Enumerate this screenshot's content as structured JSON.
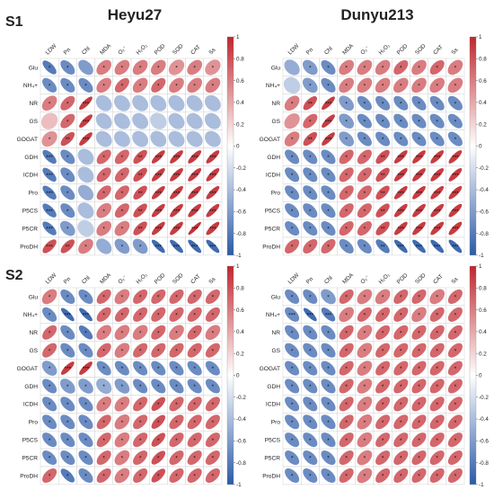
{
  "figure": {
    "section_labels": [
      "S1",
      "S2"
    ],
    "column_titles": [
      "Heyu27",
      "Dunyu213"
    ]
  },
  "chart_data": {
    "type": "heatmap",
    "encoding": "correlation ellipses (color & eccentricity = r); stars = significance",
    "columns": [
      "LDW",
      "Pn",
      "Chl",
      "MDA",
      "O₂⁻",
      "H₂O₂",
      "POD",
      "SOD",
      "CAT",
      "Ss"
    ],
    "rows": [
      "Glu",
      "NH₄+",
      "NR",
      "GS",
      "GOGAT",
      "GDH",
      "ICDH",
      "Pro",
      "P5CS",
      "P5CR",
      "ProDH"
    ],
    "colorbar": {
      "range": [
        -1,
        1
      ],
      "ticks": [
        "1",
        "0.8",
        "0.6",
        "0.4",
        "0.2",
        "0",
        "-0.2",
        "-0.4",
        "-0.6",
        "-0.8",
        "-1"
      ],
      "low_color": "#2b5aa8",
      "mid_color": "#ffffff",
      "high_color": "#c0262d"
    },
    "panels": [
      {
        "section": "S1",
        "title": "Heyu27",
        "values": [
          [
            -0.8,
            -0.7,
            -0.6,
            0.6,
            0.6,
            0.6,
            0.6,
            0.5,
            0.6,
            0.5
          ],
          [
            -0.7,
            -0.7,
            -0.7,
            0.6,
            0.7,
            0.6,
            0.7,
            0.6,
            0.6,
            0.6
          ],
          [
            0.6,
            0.7,
            0.9,
            -0.4,
            -0.4,
            -0.4,
            -0.4,
            -0.4,
            -0.4,
            -0.4
          ],
          [
            0.3,
            0.7,
            0.9,
            -0.4,
            -0.4,
            -0.4,
            -0.3,
            -0.4,
            -0.4,
            -0.4
          ],
          [
            0.5,
            0.8,
            0.9,
            -0.4,
            -0.4,
            -0.4,
            -0.4,
            -0.4,
            -0.4,
            -0.4
          ],
          [
            -0.8,
            -0.7,
            -0.4,
            0.7,
            0.7,
            0.8,
            0.9,
            0.9,
            0.9,
            0.9
          ],
          [
            -0.8,
            -0.7,
            -0.4,
            0.7,
            0.7,
            0.8,
            0.9,
            0.9,
            0.9,
            0.9
          ],
          [
            -0.8,
            -0.7,
            -0.5,
            0.7,
            0.7,
            0.8,
            0.9,
            0.9,
            0.9,
            0.9
          ],
          [
            -0.8,
            -0.7,
            -0.4,
            0.6,
            0.7,
            0.8,
            0.9,
            0.9,
            0.9,
            0.9
          ],
          [
            -0.8,
            -0.6,
            -0.3,
            0.6,
            0.6,
            0.8,
            0.9,
            0.9,
            0.95,
            0.9
          ],
          [
            0.8,
            0.8,
            0.6,
            -0.5,
            -0.6,
            -0.6,
            -0.9,
            -0.9,
            -0.9,
            -0.9
          ]
        ],
        "stars": [
          [
            1,
            1,
            0,
            1,
            1,
            1,
            1,
            1,
            1,
            1
          ],
          [
            1,
            1,
            1,
            1,
            1,
            1,
            1,
            1,
            1,
            1
          ],
          [
            1,
            1,
            3,
            0,
            0,
            0,
            0,
            0,
            0,
            0
          ],
          [
            0,
            1,
            3,
            0,
            0,
            0,
            0,
            0,
            0,
            0
          ],
          [
            1,
            2,
            3,
            0,
            0,
            0,
            0,
            0,
            0,
            0
          ],
          [
            3,
            1,
            0,
            1,
            1,
            2,
            3,
            3,
            3,
            3
          ],
          [
            3,
            1,
            0,
            1,
            1,
            2,
            3,
            3,
            3,
            3
          ],
          [
            3,
            1,
            0,
            1,
            1,
            2,
            3,
            3,
            3,
            3
          ],
          [
            3,
            1,
            0,
            1,
            1,
            2,
            3,
            3,
            3,
            3
          ],
          [
            3,
            1,
            0,
            1,
            1,
            2,
            3,
            3,
            3,
            3
          ],
          [
            3,
            2,
            1,
            0,
            1,
            1,
            3,
            3,
            3,
            3
          ]
        ]
      },
      {
        "section": "S1",
        "title": "Dunyu213",
        "values": [
          [
            -0.5,
            -0.6,
            -0.7,
            0.6,
            0.6,
            0.6,
            0.7,
            0.6,
            0.7,
            0.6
          ],
          [
            -0.3,
            -0.6,
            -0.7,
            0.6,
            0.6,
            0.6,
            0.6,
            0.6,
            0.6,
            0.6
          ],
          [
            0.6,
            0.8,
            0.9,
            -0.6,
            -0.7,
            -0.7,
            -0.7,
            -0.7,
            -0.7,
            -0.7
          ],
          [
            0.5,
            0.7,
            0.9,
            -0.6,
            -0.7,
            -0.7,
            -0.7,
            -0.7,
            -0.7,
            -0.7
          ],
          [
            0.6,
            0.8,
            0.9,
            -0.6,
            -0.7,
            -0.7,
            -0.7,
            -0.7,
            -0.7,
            -0.7
          ],
          [
            -0.7,
            -0.7,
            -0.7,
            0.7,
            0.7,
            0.8,
            0.9,
            0.9,
            0.9,
            0.9
          ],
          [
            -0.7,
            -0.7,
            -0.7,
            0.7,
            0.7,
            0.8,
            0.9,
            0.9,
            0.9,
            0.9
          ],
          [
            -0.7,
            -0.7,
            -0.7,
            0.7,
            0.7,
            0.8,
            0.9,
            0.9,
            0.9,
            0.9
          ],
          [
            -0.7,
            -0.7,
            -0.7,
            0.7,
            0.7,
            0.8,
            0.9,
            0.9,
            0.9,
            0.9
          ],
          [
            -0.7,
            -0.7,
            -0.7,
            0.7,
            0.7,
            0.8,
            0.9,
            0.9,
            0.9,
            0.9
          ],
          [
            0.7,
            0.7,
            0.7,
            -0.7,
            -0.7,
            -0.8,
            -0.9,
            -0.9,
            -0.9,
            -0.9
          ]
        ],
        "stars": [
          [
            0,
            1,
            1,
            1,
            1,
            1,
            1,
            1,
            1,
            1
          ],
          [
            0,
            1,
            1,
            1,
            1,
            1,
            1,
            1,
            1,
            1
          ],
          [
            1,
            2,
            3,
            1,
            1,
            1,
            1,
            1,
            1,
            1
          ],
          [
            0,
            1,
            3,
            1,
            1,
            1,
            1,
            1,
            1,
            1
          ],
          [
            1,
            2,
            3,
            1,
            1,
            1,
            1,
            1,
            1,
            1
          ],
          [
            1,
            1,
            1,
            1,
            1,
            2,
            3,
            3,
            3,
            3
          ],
          [
            1,
            1,
            1,
            1,
            1,
            2,
            3,
            3,
            3,
            3
          ],
          [
            1,
            1,
            1,
            1,
            1,
            2,
            3,
            3,
            3,
            3
          ],
          [
            1,
            1,
            1,
            1,
            1,
            2,
            3,
            3,
            3,
            3
          ],
          [
            1,
            1,
            1,
            1,
            1,
            2,
            3,
            3,
            3,
            3
          ],
          [
            1,
            1,
            1,
            1,
            1,
            2,
            3,
            3,
            3,
            3
          ]
        ]
      },
      {
        "section": "S2",
        "title": "Heyu27",
        "values": [
          [
            0.6,
            -0.7,
            -0.7,
            0.7,
            0.6,
            0.7,
            0.7,
            0.7,
            0.7,
            0.7
          ],
          [
            -0.7,
            -0.9,
            -0.9,
            0.7,
            0.7,
            0.7,
            0.7,
            0.7,
            0.7,
            0.7
          ],
          [
            0.7,
            -0.7,
            -0.8,
            0.6,
            0.6,
            0.6,
            0.7,
            0.6,
            0.7,
            0.6
          ],
          [
            0.7,
            -0.7,
            -0.7,
            0.7,
            0.6,
            0.7,
            0.7,
            0.7,
            0.7,
            0.7
          ],
          [
            -0.6,
            0.9,
            0.9,
            -0.7,
            -0.7,
            -0.7,
            -0.7,
            -0.7,
            -0.7,
            -0.7
          ],
          [
            -0.7,
            -0.6,
            -0.6,
            -0.5,
            -0.6,
            -0.7,
            -0.7,
            -0.7,
            -0.7,
            -0.7
          ],
          [
            -0.7,
            -0.7,
            -0.7,
            0.6,
            0.6,
            0.7,
            0.8,
            0.7,
            0.7,
            0.7
          ],
          [
            -0.7,
            -0.7,
            -0.7,
            0.7,
            0.6,
            0.7,
            0.8,
            0.7,
            0.7,
            0.7
          ],
          [
            -0.7,
            -0.7,
            -0.7,
            0.7,
            0.6,
            0.7,
            0.8,
            0.7,
            0.7,
            0.7
          ],
          [
            -0.7,
            -0.7,
            -0.7,
            0.7,
            0.6,
            0.7,
            0.8,
            0.7,
            0.7,
            0.7
          ],
          [
            0.7,
            -0.8,
            -0.7,
            0.7,
            0.6,
            0.7,
            0.8,
            0.7,
            0.7,
            0.7
          ]
        ],
        "stars": [
          [
            1,
            1,
            1,
            1,
            1,
            1,
            1,
            1,
            1,
            1
          ],
          [
            1,
            3,
            3,
            1,
            1,
            1,
            1,
            1,
            1,
            1
          ],
          [
            1,
            1,
            1,
            1,
            1,
            1,
            1,
            1,
            1,
            1
          ],
          [
            1,
            1,
            1,
            1,
            1,
            1,
            1,
            1,
            1,
            1
          ],
          [
            1,
            3,
            3,
            1,
            1,
            1,
            1,
            1,
            1,
            1
          ],
          [
            1,
            1,
            1,
            1,
            1,
            1,
            1,
            1,
            1,
            1
          ],
          [
            1,
            1,
            1,
            1,
            1,
            1,
            1,
            1,
            1,
            1
          ],
          [
            1,
            1,
            1,
            1,
            1,
            1,
            1,
            1,
            1,
            1
          ],
          [
            1,
            1,
            1,
            1,
            1,
            1,
            1,
            1,
            1,
            1
          ],
          [
            1,
            1,
            1,
            1,
            1,
            1,
            1,
            1,
            1,
            1
          ],
          [
            1,
            1,
            1,
            1,
            1,
            1,
            1,
            1,
            1,
            1
          ]
        ]
      },
      {
        "section": "S2",
        "title": "Dunyu213",
        "values": [
          [
            -0.7,
            -0.7,
            -0.6,
            0.7,
            0.6,
            0.6,
            0.7,
            0.7,
            0.6,
            0.7
          ],
          [
            -0.7,
            -0.9,
            -0.8,
            0.6,
            0.7,
            0.7,
            0.7,
            0.6,
            0.7,
            0.7
          ],
          [
            -0.7,
            -0.7,
            -0.7,
            0.7,
            0.6,
            0.7,
            0.7,
            0.7,
            0.7,
            0.7
          ],
          [
            -0.7,
            -0.7,
            -0.7,
            0.7,
            0.6,
            0.7,
            0.7,
            0.7,
            0.7,
            0.7
          ],
          [
            -0.7,
            -0.7,
            -0.7,
            0.7,
            0.6,
            0.7,
            0.7,
            0.7,
            0.7,
            0.7
          ],
          [
            -0.7,
            -0.7,
            -0.7,
            0.7,
            0.6,
            0.7,
            0.7,
            0.7,
            0.7,
            0.7
          ],
          [
            -0.7,
            -0.7,
            -0.7,
            0.7,
            0.6,
            0.7,
            0.7,
            0.7,
            0.7,
            0.7
          ],
          [
            -0.7,
            -0.7,
            -0.7,
            0.7,
            0.6,
            0.7,
            0.7,
            0.7,
            0.7,
            0.7
          ],
          [
            -0.7,
            -0.7,
            -0.7,
            0.7,
            0.6,
            0.7,
            0.7,
            0.7,
            0.7,
            0.7
          ],
          [
            -0.7,
            -0.7,
            -0.7,
            0.7,
            0.6,
            0.7,
            0.7,
            0.7,
            0.7,
            0.7
          ],
          [
            -0.7,
            -0.7,
            -0.7,
            0.7,
            0.6,
            0.7,
            0.7,
            0.7,
            0.7,
            0.7
          ]
        ],
        "stars": [
          [
            1,
            1,
            1,
            1,
            1,
            1,
            1,
            1,
            1,
            1
          ],
          [
            3,
            3,
            3,
            1,
            1,
            1,
            1,
            1,
            1,
            1
          ],
          [
            1,
            1,
            1,
            1,
            1,
            1,
            1,
            1,
            1,
            1
          ],
          [
            1,
            1,
            1,
            1,
            1,
            1,
            1,
            1,
            1,
            1
          ],
          [
            1,
            1,
            1,
            1,
            1,
            1,
            1,
            1,
            1,
            1
          ],
          [
            1,
            1,
            1,
            1,
            1,
            1,
            1,
            1,
            1,
            1
          ],
          [
            1,
            1,
            1,
            1,
            1,
            1,
            1,
            1,
            1,
            1
          ],
          [
            1,
            1,
            1,
            1,
            1,
            1,
            1,
            1,
            1,
            1
          ],
          [
            1,
            1,
            1,
            1,
            1,
            1,
            1,
            1,
            1,
            1
          ],
          [
            1,
            1,
            1,
            1,
            1,
            1,
            1,
            1,
            1,
            1
          ],
          [
            1,
            1,
            1,
            1,
            1,
            1,
            1,
            1,
            1,
            1
          ]
        ]
      }
    ]
  }
}
